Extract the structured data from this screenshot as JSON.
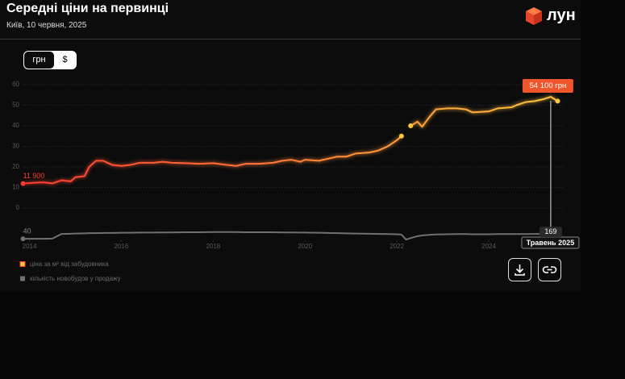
{
  "header": {
    "title": "Середні ціни на первинці",
    "subtitle": "Київ, 10 червня, 2025",
    "brand": "лун"
  },
  "currency_toggle": [
    "грн",
    "$"
  ],
  "chart_data": {
    "type": "line",
    "x": [
      2013.86,
      2014.1,
      2014.3,
      2014.5,
      2014.7,
      2014.9,
      2015.0,
      2015.2,
      2015.3,
      2015.45,
      2015.6,
      2015.8,
      2016.0,
      2016.2,
      2016.4,
      2016.7,
      2016.9,
      2017.1,
      2017.4,
      2017.7,
      2018.0,
      2018.3,
      2018.5,
      2018.7,
      2019.0,
      2019.3,
      2019.5,
      2019.7,
      2019.9,
      2020.0,
      2020.3,
      2020.5,
      2020.7,
      2020.9,
      2021.1,
      2021.4,
      2021.6,
      2021.8,
      2022.0,
      2022.1,
      2022.2,
      2022.3,
      2022.45,
      2022.55,
      2022.7,
      2022.85,
      2023.1,
      2023.3,
      2023.5,
      2023.65,
      2024.0,
      2024.2,
      2024.5,
      2024.6,
      2024.8,
      2025.0,
      2025.2,
      2025.35,
      2025.5
    ],
    "series": [
      {
        "name": "ціна за м² від забудовника",
        "color": "#ffc53d",
        "gradient_from": "#ff3b2f",
        "values": [
          11.9,
          12.3,
          12.5,
          12,
          13.5,
          13,
          15,
          15.5,
          20,
          23,
          23,
          21,
          20.5,
          21,
          22,
          22,
          22.5,
          22,
          21.8,
          21.5,
          21.8,
          21,
          20.5,
          21.5,
          21.5,
          22,
          23,
          23.5,
          22.5,
          23.5,
          23,
          24,
          25,
          25,
          26.5,
          27,
          28,
          30,
          33,
          35,
          null,
          40,
          42,
          39.5,
          44,
          48,
          48.5,
          48.5,
          48,
          46.5,
          47,
          48.5,
          49,
          50,
          51.5,
          52,
          53,
          54.1,
          52
        ],
        "value_labels": [
          "11 900",
          null,
          null,
          null,
          null,
          null,
          null,
          null,
          null,
          null,
          null,
          null,
          null,
          null,
          null,
          null,
          null,
          null,
          null,
          null,
          null,
          null,
          null,
          null,
          null,
          null,
          null,
          null,
          null,
          null,
          null,
          null,
          null,
          null,
          null,
          null,
          null,
          null,
          null,
          null,
          null,
          null,
          null,
          null,
          null,
          null,
          null,
          null,
          null,
          null,
          null,
          null,
          null,
          null,
          null,
          null,
          null,
          "54 100 грн",
          null
        ]
      },
      {
        "name": "кількість новобудов у продажу",
        "color": "#707070",
        "axis": "y2",
        "values": [
          40,
          40,
          40,
          45,
          170,
          175,
          180,
          185,
          190,
          190,
          195,
          195,
          200,
          200,
          205,
          205,
          210,
          210,
          215,
          215,
          220,
          220,
          220,
          215,
          215,
          215,
          210,
          210,
          205,
          205,
          200,
          195,
          190,
          185,
          180,
          175,
          170,
          165,
          160,
          150,
          21,
          60,
          110,
          130,
          145,
          155,
          160,
          165,
          165,
          160,
          160,
          165,
          165,
          165,
          165,
          170,
          170,
          169,
          169
        ],
        "value_labels": [
          "40",
          null,
          null,
          null,
          null,
          null,
          null,
          null,
          null,
          null,
          null,
          null,
          null,
          null,
          null,
          null,
          null,
          null,
          null,
          null,
          null,
          null,
          null,
          null,
          null,
          null,
          null,
          null,
          null,
          null,
          null,
          null,
          null,
          null,
          null,
          null,
          null,
          null,
          null,
          null,
          null,
          null,
          null,
          null,
          null,
          null,
          null,
          null,
          null,
          null,
          null,
          null,
          null,
          null,
          null,
          null,
          null,
          "169",
          null
        ]
      }
    ],
    "xlim": [
      2013.85,
      2025.65
    ],
    "xticks": [
      2014,
      2016,
      2018,
      2020,
      2022,
      2024
    ],
    "ylim": [
      0,
      60
    ],
    "yticks": [
      0,
      10,
      20,
      30,
      40,
      50,
      60
    ],
    "y2lim": [
      0,
      600
    ],
    "y2ticks": [],
    "grid": true,
    "legend": "bottom-left",
    "annotations": [
      {
        "x": 2025.35,
        "text": "Травень 2025"
      }
    ]
  }
}
